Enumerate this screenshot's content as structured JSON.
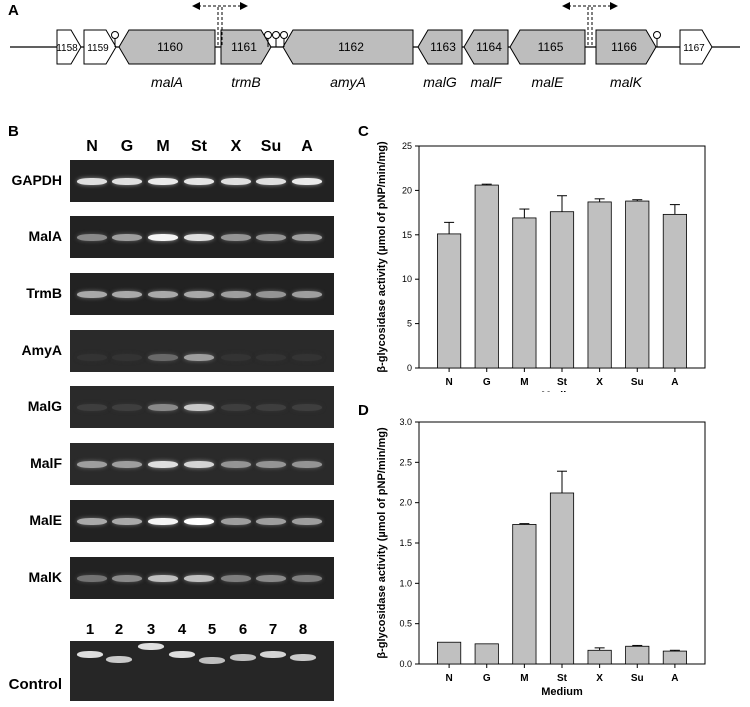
{
  "panels": {
    "a": "A",
    "b": "B",
    "c": "C",
    "d": "D"
  },
  "panel_a": {
    "genes": [
      {
        "id": "1158",
        "name": "",
        "color": "#ffffff",
        "dir": "right"
      },
      {
        "id": "1159",
        "name": "",
        "color": "#ffffff",
        "dir": "right"
      },
      {
        "id": "1160",
        "name": "malA",
        "color": "#bdbdbd",
        "dir": "left"
      },
      {
        "id": "1161",
        "name": "trmB",
        "color": "#bdbdbd",
        "dir": "right"
      },
      {
        "id": "1162",
        "name": "amyA",
        "color": "#bdbdbd",
        "dir": "left"
      },
      {
        "id": "1163",
        "name": "malG",
        "color": "#bdbdbd",
        "dir": "left"
      },
      {
        "id": "1164",
        "name": "malF",
        "color": "#bdbdbd",
        "dir": "left"
      },
      {
        "id": "1165",
        "name": "malE",
        "color": "#bdbdbd",
        "dir": "left"
      },
      {
        "id": "1166",
        "name": "malK",
        "color": "#bdbdbd",
        "dir": "right"
      },
      {
        "id": "1167",
        "name": "",
        "color": "#ffffff",
        "dir": "right"
      }
    ]
  },
  "panel_b": {
    "lanes": [
      "N",
      "G",
      "M",
      "St",
      "X",
      "Su",
      "A"
    ],
    "rows": [
      {
        "label": "GAPDH",
        "intensity": [
          0.85,
          0.85,
          0.9,
          0.88,
          0.85,
          0.85,
          0.9
        ]
      },
      {
        "label": "MalA",
        "intensity": [
          0.45,
          0.55,
          0.95,
          0.85,
          0.5,
          0.5,
          0.55
        ]
      },
      {
        "label": "TrmB",
        "intensity": [
          0.6,
          0.6,
          0.6,
          0.6,
          0.55,
          0.5,
          0.55
        ]
      },
      {
        "label": "AmyA",
        "intensity": [
          0.05,
          0.05,
          0.3,
          0.55,
          0.05,
          0.05,
          0.05
        ]
      },
      {
        "label": "MalG",
        "intensity": [
          0.1,
          0.1,
          0.45,
          0.75,
          0.1,
          0.1,
          0.1
        ]
      },
      {
        "label": "MalF",
        "intensity": [
          0.55,
          0.55,
          0.85,
          0.8,
          0.5,
          0.5,
          0.5
        ]
      },
      {
        "label": "MalE",
        "intensity": [
          0.6,
          0.6,
          0.95,
          1.0,
          0.55,
          0.55,
          0.55
        ]
      },
      {
        "label": "MalK",
        "intensity": [
          0.35,
          0.45,
          0.7,
          0.7,
          0.4,
          0.45,
          0.4
        ]
      }
    ],
    "control": {
      "label": "Control",
      "lanes": [
        "1",
        "2",
        "3",
        "4",
        "5",
        "6",
        "7",
        "8"
      ],
      "intensity": [
        0.85,
        0.75,
        0.85,
        0.85,
        0.7,
        0.7,
        0.8,
        0.75
      ]
    }
  },
  "chart_data": [
    {
      "type": "bar",
      "panel": "C",
      "categories": [
        "N",
        "G",
        "M",
        "St",
        "X",
        "Su",
        "A"
      ],
      "values": [
        15.1,
        20.6,
        16.9,
        17.6,
        18.7,
        18.8,
        17.3
      ],
      "errors": [
        1.3,
        0.1,
        1.0,
        1.8,
        0.35,
        0.15,
        1.1
      ],
      "xlabel": "Medium",
      "ylabel": "β-glycosidase activity (µmol of pNP/min/mg)",
      "ylim": [
        0,
        25
      ],
      "yticks": [
        "0",
        "5",
        "10",
        "15",
        "20",
        "25"
      ],
      "bar_color": "#c0c0c0"
    },
    {
      "type": "bar",
      "panel": "D",
      "categories": [
        "N",
        "G",
        "M",
        "St",
        "X",
        "Su",
        "A"
      ],
      "values": [
        0.27,
        0.25,
        1.73,
        2.12,
        0.17,
        0.22,
        0.16
      ],
      "errors": [
        0.0,
        0.0,
        0.01,
        0.27,
        0.03,
        0.01,
        0.01
      ],
      "xlabel": "Medium",
      "ylabel": "β-glycosidase activity (µmol of pNP/min/mg)",
      "ylim": [
        0,
        3.0
      ],
      "yticks": [
        "0.0",
        "0.5",
        "1.0",
        "1.5",
        "2.0",
        "2.5",
        "3.0"
      ],
      "bar_color": "#c0c0c0"
    }
  ]
}
